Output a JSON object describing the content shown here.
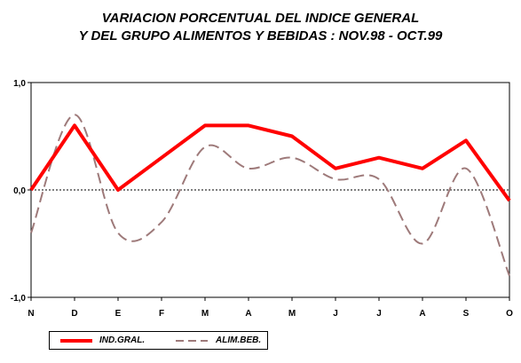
{
  "title_line1": "VARIACION PORCENTUAL DEL INDICE GENERAL",
  "title_line2": "Y DEL GRUPO ALIMENTOS Y BEBIDAS : NOV.98 - OCT.99",
  "chart_data": {
    "type": "line",
    "categories": [
      "N",
      "D",
      "E",
      "F",
      "M",
      "A",
      "M",
      "J",
      "J",
      "A",
      "S",
      "O"
    ],
    "y_tick_labels": [
      "1,0",
      "0,0",
      "-1,0"
    ],
    "ylim": [
      -1.0,
      1.0
    ],
    "y_ticks": [
      1.0,
      0.0,
      -1.0
    ],
    "grid": false,
    "legend_position": "bottom-left",
    "series": [
      {
        "name": "IND.GRAL.",
        "values": [
          0.0,
          0.6,
          0.0,
          0.3,
          0.6,
          0.6,
          0.5,
          0.2,
          0.3,
          0.2,
          0.46,
          -0.1
        ],
        "color": "#ff0000",
        "style": "solid",
        "smooth": false
      },
      {
        "name": "ALIM.BEB.",
        "values": [
          -0.4,
          0.7,
          -0.4,
          -0.3,
          0.4,
          0.2,
          0.3,
          0.1,
          0.1,
          -0.5,
          0.2,
          -0.8
        ],
        "color": "#9e7a7a",
        "style": "dashed",
        "smooth": true
      }
    ]
  }
}
